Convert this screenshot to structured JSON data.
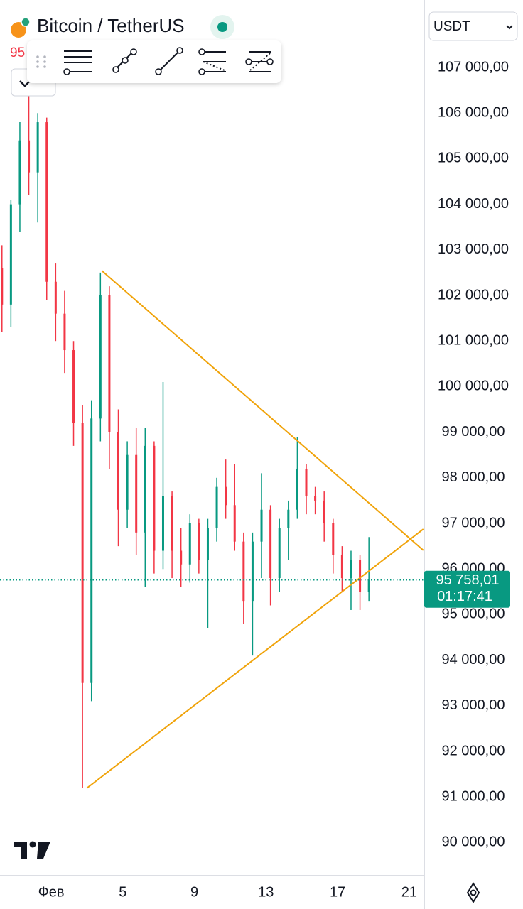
{
  "chart_data": {
    "type": "candlestick",
    "title": "Bitcoin / TetherUS",
    "header_price": "95",
    "currency": "USDT",
    "up_color": "#089981",
    "down_color": "#f23645",
    "x": [
      -1.75,
      -1.25,
      -0.75,
      -0.25,
      0.25,
      0.75,
      1.25,
      1.75,
      2.25,
      2.75,
      3.25,
      3.75,
      4.25,
      4.75,
      5.25,
      5.75,
      6.25,
      6.75,
      7.25,
      7.75,
      8.25,
      8.75,
      9.25,
      9.75,
      10.25,
      10.75,
      11.25,
      11.75,
      12.25,
      12.75,
      13.25,
      13.75,
      14.25,
      14.75,
      15.25,
      15.75,
      16.25,
      16.75,
      17.25,
      17.75,
      18.25,
      18.75
    ],
    "open": [
      102600,
      101800,
      104000,
      105400,
      104700,
      105800,
      102300,
      101600,
      100800,
      99200,
      93500,
      99300,
      102000,
      99000,
      97300,
      98500,
      96800,
      98700,
      96400,
      97600,
      96400,
      96100,
      97000,
      96200,
      96900,
      97800,
      97400,
      96600,
      95300,
      96600,
      97300,
      95800,
      96900,
      97300,
      98200,
      97600,
      97500,
      97000,
      96300,
      95800,
      96200,
      95500
    ],
    "high": [
      103100,
      104100,
      105800,
      106400,
      106000,
      105900,
      102700,
      102100,
      101000,
      99600,
      99700,
      102500,
      102200,
      99500,
      98800,
      99100,
      99100,
      98800,
      100100,
      97700,
      96900,
      97200,
      97100,
      97100,
      98000,
      98400,
      98300,
      96800,
      96800,
      98100,
      97400,
      97100,
      97500,
      98900,
      98300,
      97800,
      97700,
      97100,
      96500,
      96400,
      96300,
      96700
    ],
    "low": [
      101200,
      101300,
      103400,
      104200,
      103600,
      101900,
      101000,
      100300,
      98700,
      91200,
      93100,
      98800,
      98200,
      96500,
      96900,
      96300,
      95600,
      95900,
      96000,
      95800,
      95600,
      95700,
      95900,
      94700,
      96600,
      97100,
      96400,
      94800,
      94100,
      95800,
      95200,
      95500,
      96200,
      97100,
      97200,
      97200,
      96600,
      95900,
      95500,
      95100,
      95100,
      95300
    ],
    "close": [
      101800,
      104000,
      105400,
      104700,
      105800,
      102300,
      101600,
      100800,
      99200,
      93500,
      99300,
      102000,
      99000,
      97300,
      98500,
      96800,
      98700,
      96400,
      97600,
      96400,
      96100,
      97000,
      96200,
      96900,
      97800,
      97400,
      96600,
      95300,
      96600,
      97300,
      95800,
      96900,
      97300,
      98200,
      97600,
      97500,
      97000,
      96300,
      95800,
      96200,
      95500,
      95758.01
    ],
    "xlim": [
      -1.86,
      21.8
    ],
    "xticks": [
      {
        "value": 1,
        "label": "Фев"
      },
      5,
      9,
      13,
      17,
      21
    ],
    "ylim": [
      89274,
      108480
    ],
    "yticks": [
      {
        "value": 90000,
        "label": "90 000,00"
      },
      {
        "value": 91000,
        "label": "91 000,00"
      },
      {
        "value": 92000,
        "label": "92 000,00"
      },
      {
        "value": 93000,
        "label": "93 000,00"
      },
      {
        "value": 94000,
        "label": "94 000,00"
      },
      {
        "value": 95000,
        "label": "95 000,00"
      },
      {
        "value": 96000,
        "label": "96 000,00"
      },
      {
        "value": 97000,
        "label": "97 000,00"
      },
      {
        "value": 98000,
        "label": "98 000,00"
      },
      {
        "value": 99000,
        "label": "99 000,00"
      },
      {
        "value": 100000,
        "label": "100 000,00"
      },
      {
        "value": 101000,
        "label": "101 000,00"
      },
      {
        "value": 102000,
        "label": "102 000,00"
      },
      {
        "value": 103000,
        "label": "103 000,00"
      },
      {
        "value": 104000,
        "label": "104 000,00"
      },
      {
        "value": 105000,
        "label": "105 000,00"
      },
      {
        "value": 106000,
        "label": "106 000,00"
      },
      {
        "value": 107000,
        "label": "107 000,00"
      }
    ],
    "last_price": {
      "value": 95758.01,
      "label": "95 758,01"
    },
    "countdown": "01:17:41",
    "trendline_color": "#f0a30a",
    "trendlines": [
      {
        "x": [
          3.82,
          21.79
        ],
        "y": [
          102545,
          96410
        ]
      },
      {
        "x": [
          2.98,
          21.79
        ],
        "y": [
          91190,
          96875
        ]
      }
    ]
  }
}
